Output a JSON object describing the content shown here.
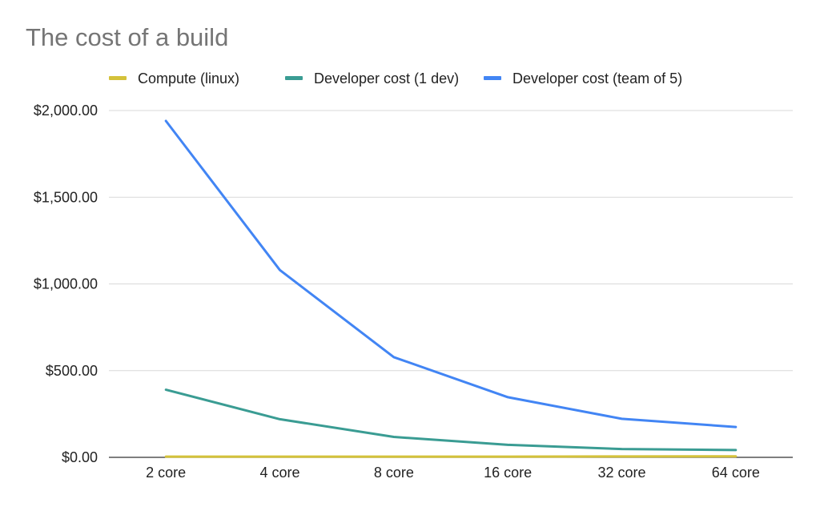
{
  "chart_data": {
    "type": "line",
    "title": "The cost of a build",
    "xlabel": "",
    "ylabel": "",
    "categories": [
      "2 core",
      "4 core",
      "8 core",
      "16 core",
      "32 core",
      "64 core"
    ],
    "ylim": [
      0,
      2000
    ],
    "yticks": [
      0,
      500,
      1000,
      1500,
      2000
    ],
    "ytick_labels": [
      "$0.00",
      "$500.00",
      "$1,000.00",
      "$1,500.00",
      "$2,000.00"
    ],
    "grid": true,
    "legend_position": "top",
    "series": [
      {
        "name": "Compute (linux)",
        "color": "#d4c23a",
        "values": [
          4,
          4,
          4,
          4,
          5,
          6
        ]
      },
      {
        "name": "Developer cost (1 dev)",
        "color": "#3a9c93",
        "values": [
          390,
          220,
          118,
          72,
          48,
          42
        ]
      },
      {
        "name": "Developer cost (team of 5)",
        "color": "#4285f4",
        "values": [
          1940,
          1080,
          578,
          347,
          222,
          175
        ]
      }
    ]
  }
}
